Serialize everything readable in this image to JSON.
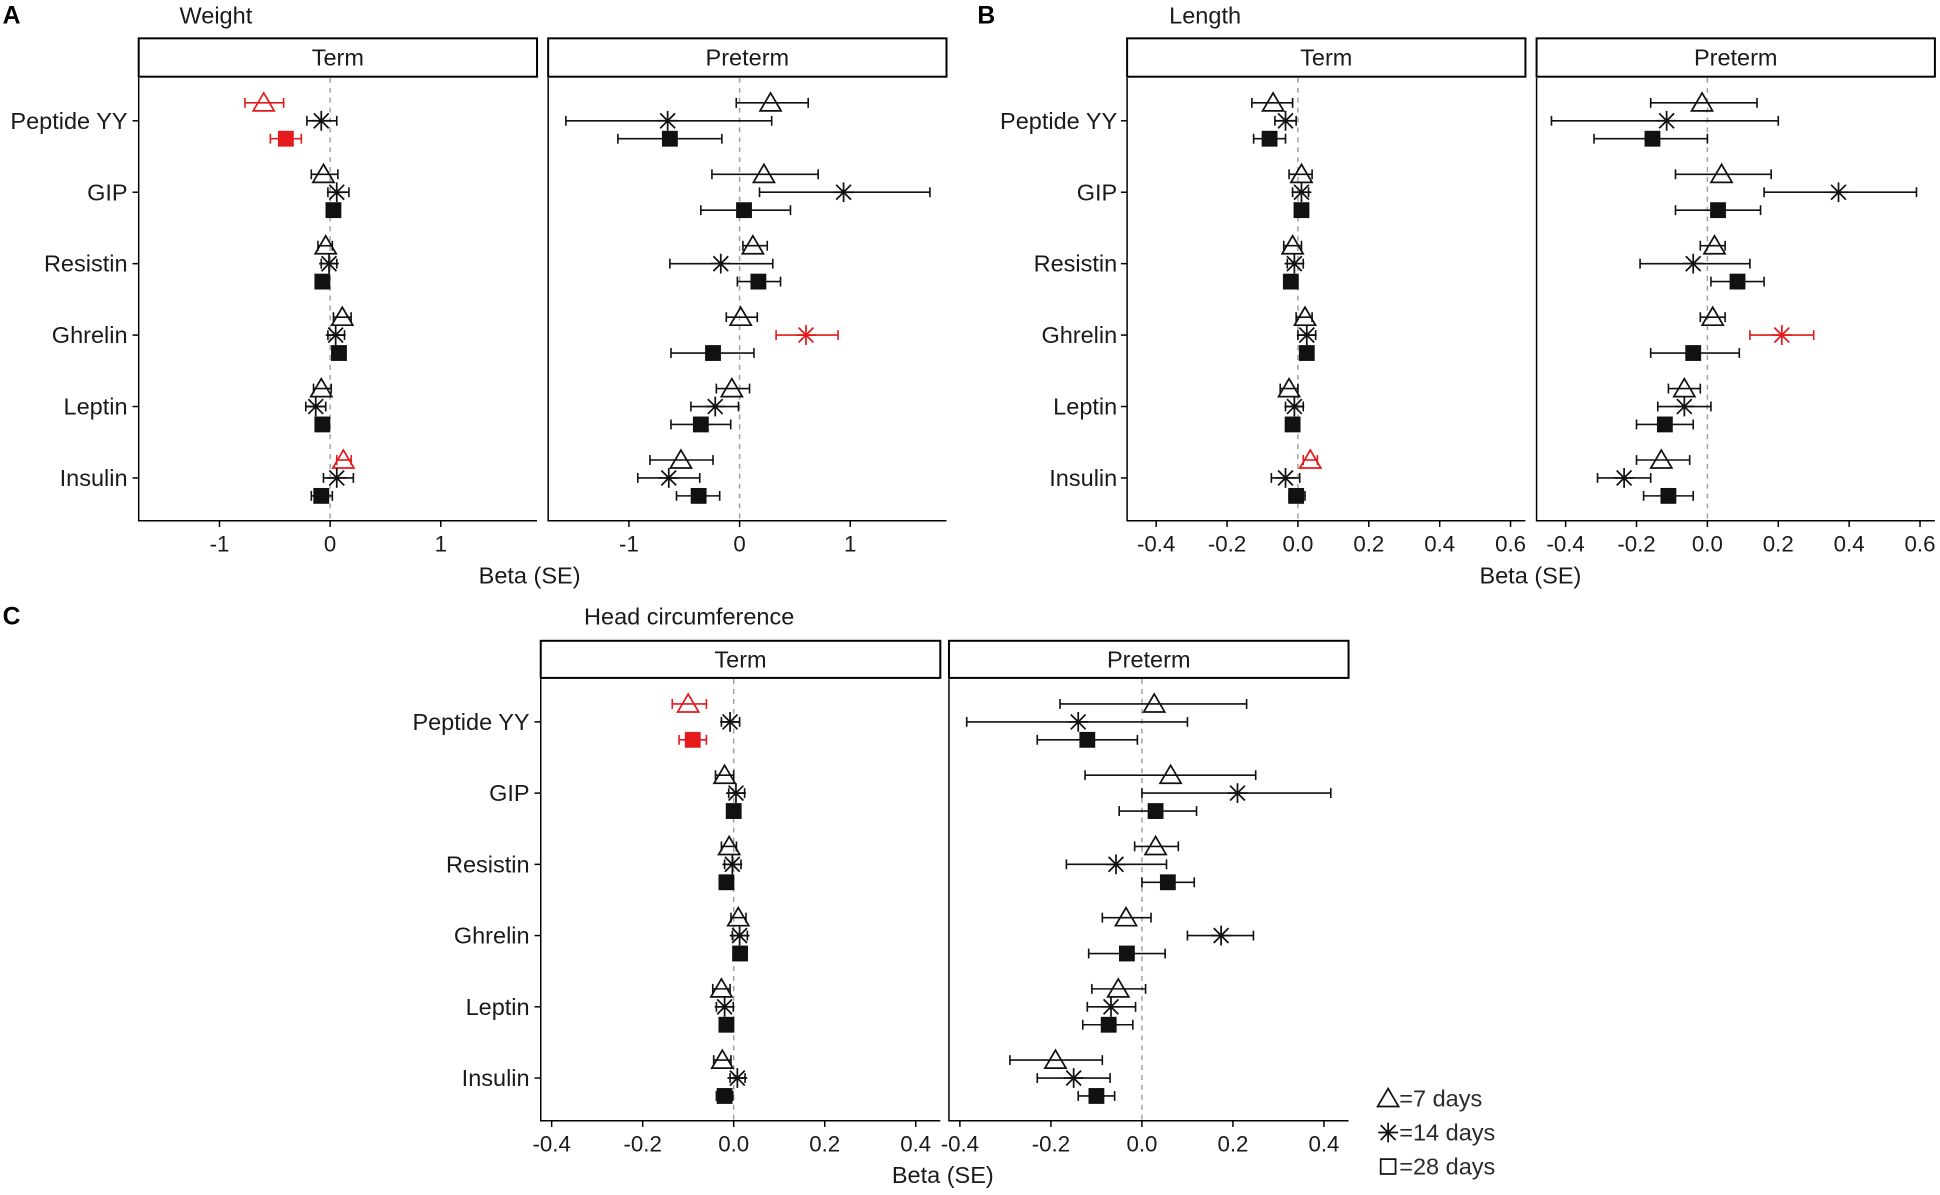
{
  "figure": {
    "background": "#ffffff"
  },
  "colors": {
    "default": "#111111",
    "highlight": "#e41a1c",
    "zero_line": "#a0a0a0",
    "legend_text": "#2b2b2b"
  },
  "legend": {
    "items": [
      {
        "marker": "triangle",
        "label": "=7 days"
      },
      {
        "marker": "asterisk",
        "label": "=14 days"
      },
      {
        "marker": "square",
        "label": "=28 days"
      }
    ]
  },
  "chart_data": [
    {
      "type": "scatter",
      "panel": "A",
      "title": "Weight",
      "xlabel": "Beta (SE)",
      "ylabel": "",
      "categories": [
        "Peptide YY",
        "GIP",
        "Resistin",
        "Ghrelin",
        "Leptin",
        "Insulin"
      ],
      "xlim": [
        -1.73,
        1.87
      ],
      "xticks": [
        -1,
        0,
        1
      ],
      "xtick_labels": [
        "-1",
        "0",
        "1"
      ],
      "reference_line": 0,
      "facets": [
        {
          "name": "Term",
          "series": [
            {
              "legend_index": 0,
              "marker": "triangle",
              "values": [
                -0.6,
                -0.06,
                -0.04,
                0.11,
                -0.08,
                0.12
              ],
              "lower": [
                -0.77,
                -0.17,
                -0.11,
                0.03,
                -0.15,
                0.06
              ],
              "upper": [
                -0.42,
                0.07,
                0.02,
                0.19,
                0.01,
                0.19
              ],
              "highlight": [
                true,
                false,
                false,
                false,
                false,
                true
              ]
            },
            {
              "legend_index": 1,
              "marker": "asterisk",
              "values": [
                -0.08,
                0.06,
                -0.01,
                0.05,
                -0.13,
                0.06
              ],
              "lower": [
                -0.21,
                -0.02,
                -0.08,
                -0.02,
                -0.22,
                -0.06
              ],
              "upper": [
                0.06,
                0.17,
                0.06,
                0.13,
                -0.04,
                0.21
              ],
              "highlight": [
                false,
                false,
                false,
                false,
                false,
                false
              ]
            },
            {
              "legend_index": 2,
              "marker": "square",
              "values": [
                -0.4,
                0.03,
                -0.07,
                0.08,
                -0.07,
                -0.08
              ],
              "lower": [
                -0.54,
                -0.01,
                -0.1,
                0.04,
                -0.1,
                -0.17
              ],
              "upper": [
                -0.26,
                0.07,
                -0.04,
                0.12,
                -0.04,
                0.02
              ],
              "highlight": [
                true,
                false,
                false,
                false,
                false,
                false
              ]
            }
          ]
        },
        {
          "name": "Preterm",
          "series": [
            {
              "legend_index": 0,
              "marker": "triangle",
              "values": [
                0.28,
                0.22,
                0.12,
                0.01,
                -0.07,
                -0.53
              ],
              "lower": [
                -0.03,
                -0.25,
                0.03,
                -0.12,
                -0.21,
                -0.81
              ],
              "upper": [
                0.62,
                0.71,
                0.25,
                0.16,
                0.09,
                -0.24
              ],
              "highlight": [
                false,
                false,
                false,
                false,
                false,
                false
              ]
            },
            {
              "legend_index": 1,
              "marker": "asterisk",
              "values": [
                -0.65,
                0.94,
                -0.17,
                0.6,
                -0.22,
                -0.64
              ],
              "lower": [
                -1.57,
                0.18,
                -0.63,
                0.33,
                -0.44,
                -0.92
              ],
              "upper": [
                0.29,
                1.72,
                0.3,
                0.89,
                -0.01,
                -0.36
              ],
              "highlight": [
                false,
                false,
                false,
                true,
                false,
                false
              ]
            },
            {
              "legend_index": 2,
              "marker": "square",
              "values": [
                -0.63,
                0.04,
                0.17,
                -0.24,
                -0.35,
                -0.37
              ],
              "lower": [
                -1.1,
                -0.35,
                -0.02,
                -0.62,
                -0.62,
                -0.57
              ],
              "upper": [
                -0.16,
                0.46,
                0.37,
                0.13,
                -0.08,
                -0.18
              ],
              "highlight": [
                false,
                false,
                false,
                false,
                false,
                false
              ]
            }
          ]
        }
      ]
    },
    {
      "type": "scatter",
      "panel": "B",
      "title": "Length",
      "xlabel": "Beta (SE)",
      "ylabel": "",
      "categories": [
        "Peptide YY",
        "GIP",
        "Resistin",
        "Ghrelin",
        "Leptin",
        "Insulin"
      ],
      "xlim": [
        -0.482,
        0.642
      ],
      "xticks": [
        -0.4,
        -0.2,
        0.0,
        0.2,
        0.4,
        0.6
      ],
      "xtick_labels": [
        "-0.4",
        "-0.2",
        "0.0",
        "0.2",
        "0.4",
        "0.6"
      ],
      "reference_line": 0,
      "facets": [
        {
          "name": "Term",
          "series": [
            {
              "legend_index": 0,
              "marker": "triangle",
              "values": [
                -0.07,
                0.01,
                -0.015,
                0.02,
                -0.025,
                0.035
              ],
              "lower": [
                -0.13,
                -0.025,
                -0.04,
                -0.005,
                -0.05,
                0.015
              ],
              "upper": [
                -0.015,
                0.04,
                0.01,
                0.04,
                0.0,
                0.055
              ],
              "highlight": [
                false,
                false,
                false,
                false,
                false,
                true
              ]
            },
            {
              "legend_index": 1,
              "marker": "asterisk",
              "values": [
                -0.035,
                0.01,
                -0.01,
                0.025,
                -0.01,
                -0.035
              ],
              "lower": [
                -0.065,
                -0.015,
                -0.03,
                0.0,
                -0.035,
                -0.075
              ],
              "upper": [
                -0.005,
                0.03,
                0.015,
                0.05,
                0.015,
                0.005
              ],
              "highlight": [
                false,
                false,
                false,
                false,
                false,
                false
              ]
            },
            {
              "legend_index": 2,
              "marker": "square",
              "values": [
                -0.08,
                0.01,
                -0.02,
                0.025,
                -0.015,
                -0.005
              ],
              "lower": [
                -0.125,
                0.0,
                -0.03,
                0.015,
                -0.025,
                -0.025
              ],
              "upper": [
                -0.035,
                0.02,
                -0.01,
                0.035,
                -0.005,
                0.02
              ],
              "highlight": [
                false,
                false,
                false,
                false,
                false,
                false
              ]
            }
          ]
        },
        {
          "name": "Preterm",
          "series": [
            {
              "legend_index": 0,
              "marker": "triangle",
              "values": [
                -0.015,
                0.04,
                0.02,
                0.015,
                -0.065,
                -0.13
              ],
              "lower": [
                -0.16,
                -0.09,
                -0.02,
                -0.02,
                -0.11,
                -0.2
              ],
              "upper": [
                0.14,
                0.18,
                0.05,
                0.05,
                -0.02,
                -0.05
              ],
              "highlight": [
                false,
                false,
                false,
                false,
                false,
                false
              ]
            },
            {
              "legend_index": 1,
              "marker": "asterisk",
              "values": [
                -0.115,
                0.37,
                -0.04,
                0.21,
                -0.065,
                -0.235
              ],
              "lower": [
                -0.44,
                0.16,
                -0.19,
                0.12,
                -0.14,
                -0.31
              ],
              "upper": [
                0.2,
                0.59,
                0.12,
                0.3,
                0.01,
                -0.16
              ],
              "highlight": [
                false,
                false,
                false,
                true,
                false,
                false
              ]
            },
            {
              "legend_index": 2,
              "marker": "square",
              "values": [
                -0.155,
                0.03,
                0.085,
                -0.04,
                -0.12,
                -0.11
              ],
              "lower": [
                -0.32,
                -0.09,
                0.01,
                -0.16,
                -0.2,
                -0.18
              ],
              "upper": [
                0.0,
                0.15,
                0.16,
                0.09,
                -0.04,
                -0.04
              ],
              "highlight": [
                false,
                false,
                false,
                false,
                false,
                false
              ]
            }
          ]
        }
      ]
    },
    {
      "type": "scatter",
      "panel": "C",
      "title": "Head circumference",
      "xlabel": "Beta (SE)",
      "ylabel": "",
      "categories": [
        "Peptide YY",
        "GIP",
        "Resistin",
        "Ghrelin",
        "Leptin",
        "Insulin"
      ],
      "xlim": [
        -0.424,
        0.454
      ],
      "xticks": [
        -0.4,
        -0.2,
        0.0,
        0.2,
        0.4
      ],
      "xtick_labels": [
        "-0.4",
        "-0.2",
        "0.0",
        "0.2",
        "0.4"
      ],
      "reference_line": 0,
      "facets": [
        {
          "name": "Term",
          "series": [
            {
              "legend_index": 0,
              "marker": "triangle",
              "values": [
                -0.1,
                -0.02,
                -0.01,
                0.01,
                -0.027,
                -0.025
              ],
              "lower": [
                -0.135,
                -0.04,
                -0.027,
                -0.006,
                -0.046,
                -0.044
              ],
              "upper": [
                -0.06,
                0.0,
                0.006,
                0.027,
                -0.008,
                -0.006
              ],
              "highlight": [
                true,
                false,
                false,
                false,
                false,
                false
              ]
            },
            {
              "legend_index": 1,
              "marker": "asterisk",
              "values": [
                -0.008,
                0.005,
                -0.003,
                0.013,
                -0.02,
                0.008
              ],
              "lower": [
                -0.027,
                -0.011,
                -0.02,
                -0.003,
                -0.038,
                -0.008
              ],
              "upper": [
                0.013,
                0.024,
                0.016,
                0.03,
                -0.001,
                0.025
              ],
              "highlight": [
                false,
                false,
                false,
                false,
                false,
                false
              ]
            },
            {
              "legend_index": 2,
              "marker": "square",
              "values": [
                -0.09,
                0.0,
                -0.016,
                0.014,
                -0.016,
                -0.02
              ],
              "lower": [
                -0.12,
                -0.008,
                -0.024,
                0.006,
                -0.024,
                -0.038
              ],
              "upper": [
                -0.06,
                0.008,
                -0.008,
                0.022,
                -0.008,
                -0.002
              ],
              "highlight": [
                true,
                false,
                false,
                false,
                false,
                false
              ]
            }
          ]
        },
        {
          "name": "Preterm",
          "series": [
            {
              "legend_index": 0,
              "marker": "triangle",
              "values": [
                0.027,
                0.063,
                0.03,
                -0.035,
                -0.052,
                -0.19
              ],
              "lower": [
                -0.18,
                -0.125,
                -0.016,
                -0.087,
                -0.11,
                -0.29
              ],
              "upper": [
                0.23,
                0.25,
                0.08,
                0.02,
                0.008,
                -0.087
              ],
              "highlight": [
                false,
                false,
                false,
                false,
                false,
                false
              ]
            },
            {
              "legend_index": 1,
              "marker": "asterisk",
              "values": [
                -0.14,
                0.21,
                -0.057,
                0.174,
                -0.068,
                -0.15
              ],
              "lower": [
                -0.385,
                0.0,
                -0.166,
                0.1,
                -0.12,
                -0.23
              ],
              "upper": [
                0.1,
                0.415,
                0.054,
                0.245,
                -0.014,
                -0.07
              ],
              "highlight": [
                false,
                false,
                false,
                false,
                false,
                false
              ]
            },
            {
              "legend_index": 2,
              "marker": "square",
              "values": [
                -0.12,
                0.03,
                0.057,
                -0.033,
                -0.073,
                -0.1
              ],
              "lower": [
                -0.23,
                -0.05,
                0.0,
                -0.117,
                -0.13,
                -0.14
              ],
              "upper": [
                -0.01,
                0.12,
                0.115,
                0.051,
                -0.02,
                -0.06
              ],
              "highlight": [
                false,
                false,
                false,
                false,
                false,
                false
              ]
            }
          ]
        }
      ]
    }
  ]
}
